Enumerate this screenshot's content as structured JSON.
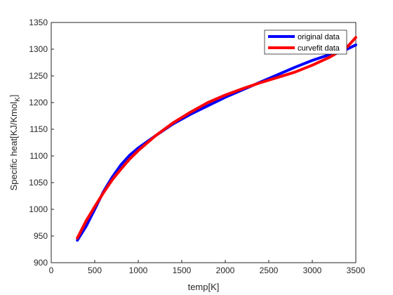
{
  "chart_data": {
    "type": "line",
    "title": "",
    "xlabel": "temp[K]",
    "ylabel_main": "Specific heat[KJ/Kmol",
    "ylabel_sub": "K",
    "ylabel_close": "]",
    "xlim": [
      0,
      3500
    ],
    "ylim": [
      900,
      1350
    ],
    "xticks": [
      0,
      500,
      1000,
      1500,
      2000,
      2500,
      3000,
      3500
    ],
    "yticks": [
      900,
      950,
      1000,
      1050,
      1100,
      1150,
      1200,
      1250,
      1300,
      1350
    ],
    "grid": false,
    "legend_position": "top-right",
    "series": [
      {
        "name": "original data",
        "color": "#0000ff",
        "x": [
          300,
          400,
          500,
          600,
          700,
          800,
          900,
          1000,
          1200,
          1400,
          1600,
          1800,
          2000,
          2200,
          2400,
          2600,
          2800,
          3000,
          3200,
          3400,
          3500
        ],
        "y": [
          942,
          968,
          1000,
          1033,
          1060,
          1083,
          1101,
          1115,
          1138,
          1160,
          1178,
          1194,
          1210,
          1224,
          1238,
          1252,
          1266,
          1279,
          1290,
          1300,
          1308
        ]
      },
      {
        "name": "curvefit data",
        "color": "#ff0000",
        "x": [
          300,
          400,
          500,
          600,
          700,
          800,
          900,
          1000,
          1200,
          1400,
          1600,
          1800,
          2000,
          2200,
          2400,
          2600,
          2800,
          3000,
          3200,
          3400,
          3500
        ],
        "y": [
          946,
          978,
          1005,
          1031,
          1055,
          1075,
          1094,
          1110,
          1138,
          1162,
          1182,
          1200,
          1214,
          1226,
          1237,
          1247,
          1257,
          1270,
          1285,
          1304,
          1322
        ]
      }
    ]
  }
}
